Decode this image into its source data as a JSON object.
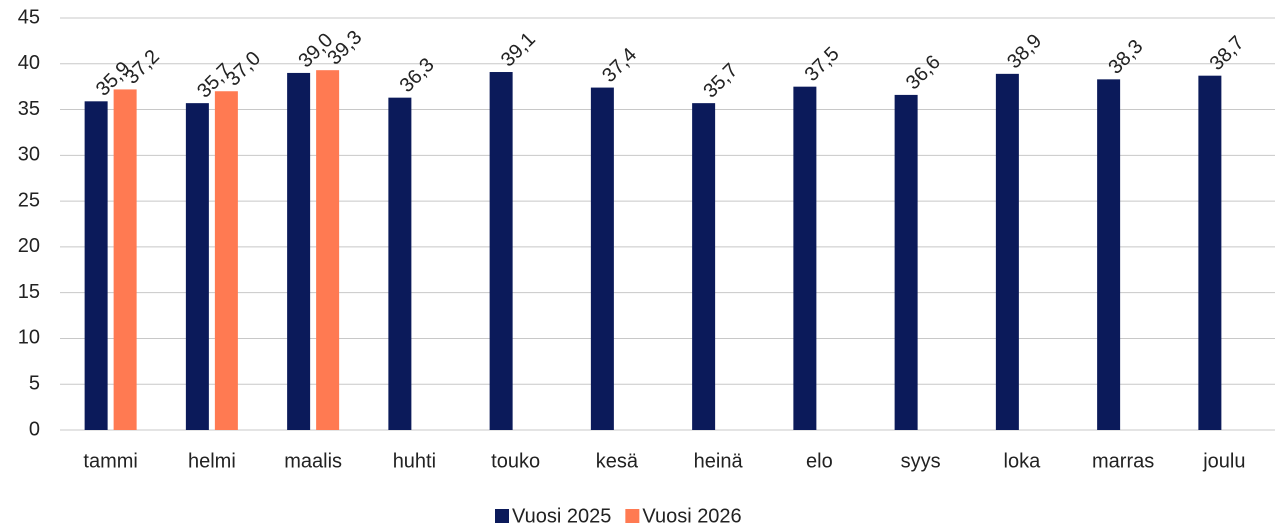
{
  "chart_data": {
    "type": "bar",
    "categories": [
      "tammi",
      "helmi",
      "maalis",
      "huhti",
      "touko",
      "kesä",
      "heinä",
      "elo",
      "syys",
      "loka",
      "marras",
      "joulu"
    ],
    "series": [
      {
        "name": "Vuosi 2025",
        "color": "#0b1a5a",
        "values": [
          35.9,
          35.7,
          39.0,
          36.3,
          39.1,
          37.4,
          35.7,
          37.5,
          36.6,
          38.9,
          38.3,
          38.7
        ],
        "value_labels": [
          "35,9",
          "35,7",
          "39,0",
          "36,3",
          "39,1",
          "37,4",
          "35,7",
          "37,5",
          "36,6",
          "38,9",
          "38,3",
          "38,7"
        ]
      },
      {
        "name": "Vuosi 2026",
        "color": "#ff7a52",
        "values": [
          37.2,
          37.0,
          39.3,
          null,
          null,
          null,
          null,
          null,
          null,
          null,
          null,
          null
        ],
        "value_labels": [
          "37,2",
          "37,0",
          "39,3",
          null,
          null,
          null,
          null,
          null,
          null,
          null,
          null,
          null
        ]
      }
    ],
    "ylim": [
      0,
      45
    ],
    "yticks": [
      0,
      5,
      10,
      15,
      20,
      25,
      30,
      35,
      40,
      45
    ],
    "grid": true,
    "legend": "bottom"
  }
}
